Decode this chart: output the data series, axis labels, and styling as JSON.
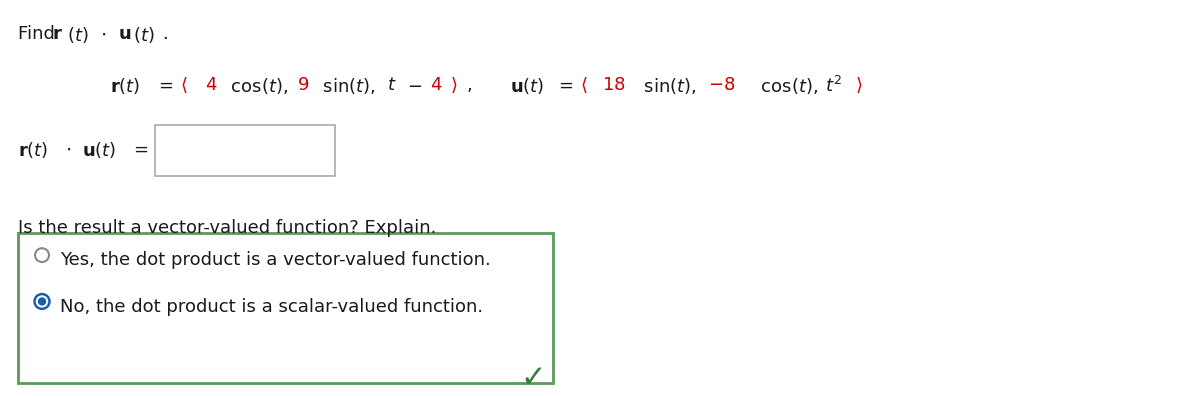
{
  "bg_color": "#ffffff",
  "title_text": "Find $\\mathbf{r}$($t$) $\\cdot$ $\\mathbf{u}$($t$).",
  "eq_line": "$\\mathbf{r}$($t$) = $\\langle$4 cos($t$), 9 sin($t$), $t$ – 4$\\rangle$,     $\\mathbf{u}$($t$) = $\\langle$18 sin($t$), −8 cos($t$), $t^2$$\\rangle$",
  "dot_label": "$\\mathbf{r}$($t$) $\\cdot$ $\\mathbf{u}$($t$) =",
  "question_text": "Is the result a vector-valued function? Explain.",
  "option1": "Yes, the dot product is a vector-valued function.",
  "option2": "No, the dot product is a scalar-valued function.",
  "red_color": "#cc0000",
  "black_color": "#1a1a1a",
  "green_color": "#3a7d3a",
  "box_border_color": "#5a9a5a",
  "radio_selected_color": "#1a5fa8",
  "radio_unselected_color": "#888888"
}
